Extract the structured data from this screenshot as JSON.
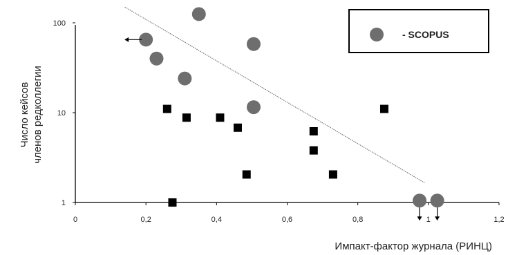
{
  "chart_data": {
    "type": "scatter",
    "title": "",
    "xlabel": "Импакт-фактор журнала (РИНЦ)",
    "ylabel_lines": [
      "Число кейсов",
      "членов редколлегии"
    ],
    "x_scale": "linear",
    "y_scale": "log",
    "xlim": [
      0,
      1.2
    ],
    "ylim": [
      1,
      100
    ],
    "x_ticks": [
      {
        "value": 0,
        "label": "0"
      },
      {
        "value": 0.2,
        "label": "0,2"
      },
      {
        "value": 0.4,
        "label": "0,4"
      },
      {
        "value": 0.6,
        "label": "0,6"
      },
      {
        "value": 0.8,
        "label": "0,8"
      },
      {
        "value": 1.0,
        "label": "1"
      },
      {
        "value": 1.2,
        "label": "1,2"
      }
    ],
    "y_ticks": [
      {
        "value": 1,
        "label": "1"
      },
      {
        "value": 10,
        "label": "10"
      },
      {
        "value": 100,
        "label": "100"
      }
    ],
    "grid": false,
    "legend": {
      "position": "top-right",
      "entries": [
        {
          "marker": "circle",
          "label": "- SCOPUS"
        }
      ]
    },
    "colors": {
      "scopus": "#6e6e6e",
      "other": "#000000",
      "trend": "#666666"
    },
    "series": [
      {
        "marker": "circle",
        "points": [
          {
            "x": 0.35,
            "y": 125
          },
          {
            "x": 0.2,
            "y": 65,
            "arrow": "left"
          },
          {
            "x": 0.505,
            "y": 58
          },
          {
            "x": 0.23,
            "y": 40
          },
          {
            "x": 0.31,
            "y": 24
          },
          {
            "x": 0.505,
            "y": 11.5
          },
          {
            "x": 0.975,
            "y": 1.05,
            "arrow": "down"
          },
          {
            "x": 1.025,
            "y": 1.05,
            "arrow": "down"
          }
        ]
      },
      {
        "marker": "square",
        "points": [
          {
            "x": 0.26,
            "y": 11
          },
          {
            "x": 0.315,
            "y": 8.8
          },
          {
            "x": 0.41,
            "y": 8.8
          },
          {
            "x": 0.46,
            "y": 6.8
          },
          {
            "x": 0.485,
            "y": 2.05
          },
          {
            "x": 0.675,
            "y": 6.2
          },
          {
            "x": 0.675,
            "y": 3.8
          },
          {
            "x": 0.73,
            "y": 2.05
          },
          {
            "x": 0.875,
            "y": 11
          },
          {
            "x": 0.275,
            "y": 1
          }
        ]
      }
    ],
    "trendline": {
      "from": {
        "x": 0.14,
        "y": 150
      },
      "to": {
        "x": 0.99,
        "y": 1.65
      }
    }
  }
}
